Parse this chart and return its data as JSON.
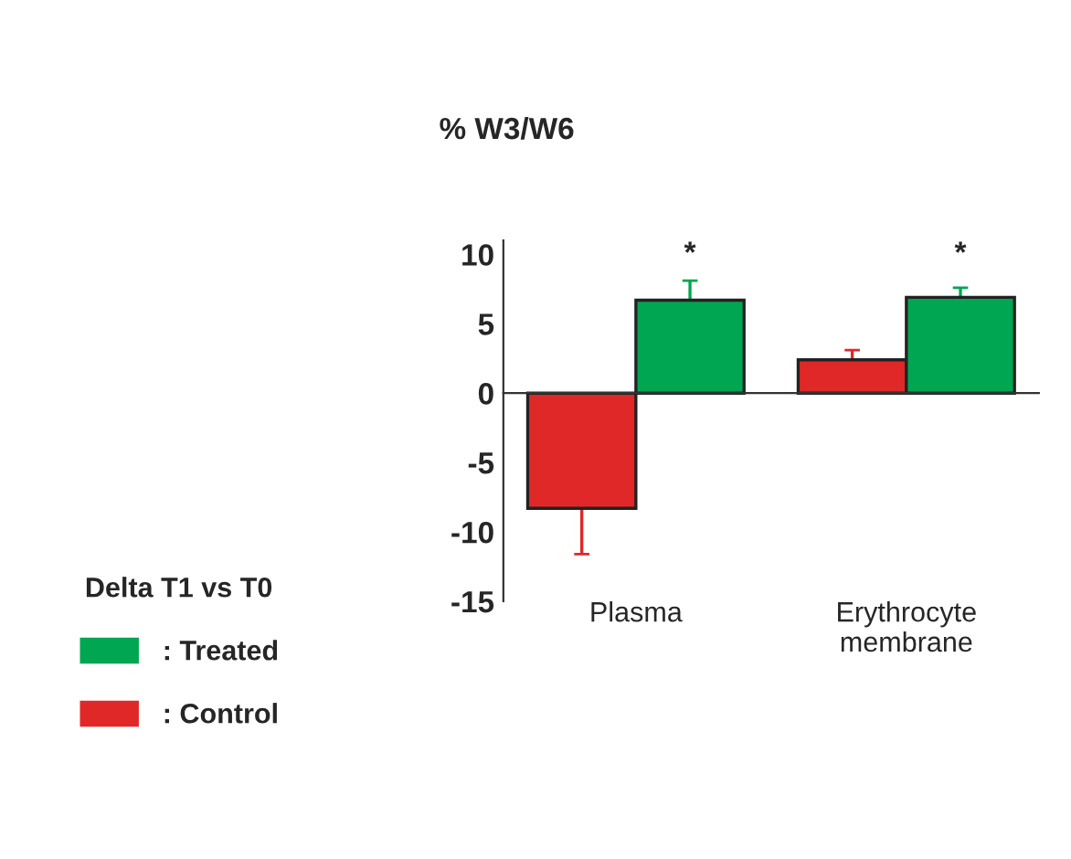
{
  "chart_data": {
    "type": "bar",
    "title": "% W3/W6",
    "legend_title": "Delta T1 vs T0",
    "categories": [
      "Plasma",
      "Erythrocyte\nmembrane"
    ],
    "series": [
      {
        "name": ": Control",
        "color": "#e02828",
        "values": [
          -8.3,
          2.4
        ],
        "errors": [
          [
            -11.6,
            -8.3
          ],
          [
            2.4,
            3.1
          ]
        ]
      },
      {
        "name": ": Treated",
        "color": "#00a651",
        "values": [
          6.7,
          6.9
        ],
        "errors": [
          [
            6.7,
            8.1
          ],
          [
            6.9,
            7.6
          ]
        ]
      }
    ],
    "annotations": [
      "*",
      "*"
    ],
    "ylim": [
      -15,
      11
    ],
    "yticks": [
      -15,
      -10,
      -5,
      0,
      5,
      10
    ],
    "legend": "left"
  }
}
